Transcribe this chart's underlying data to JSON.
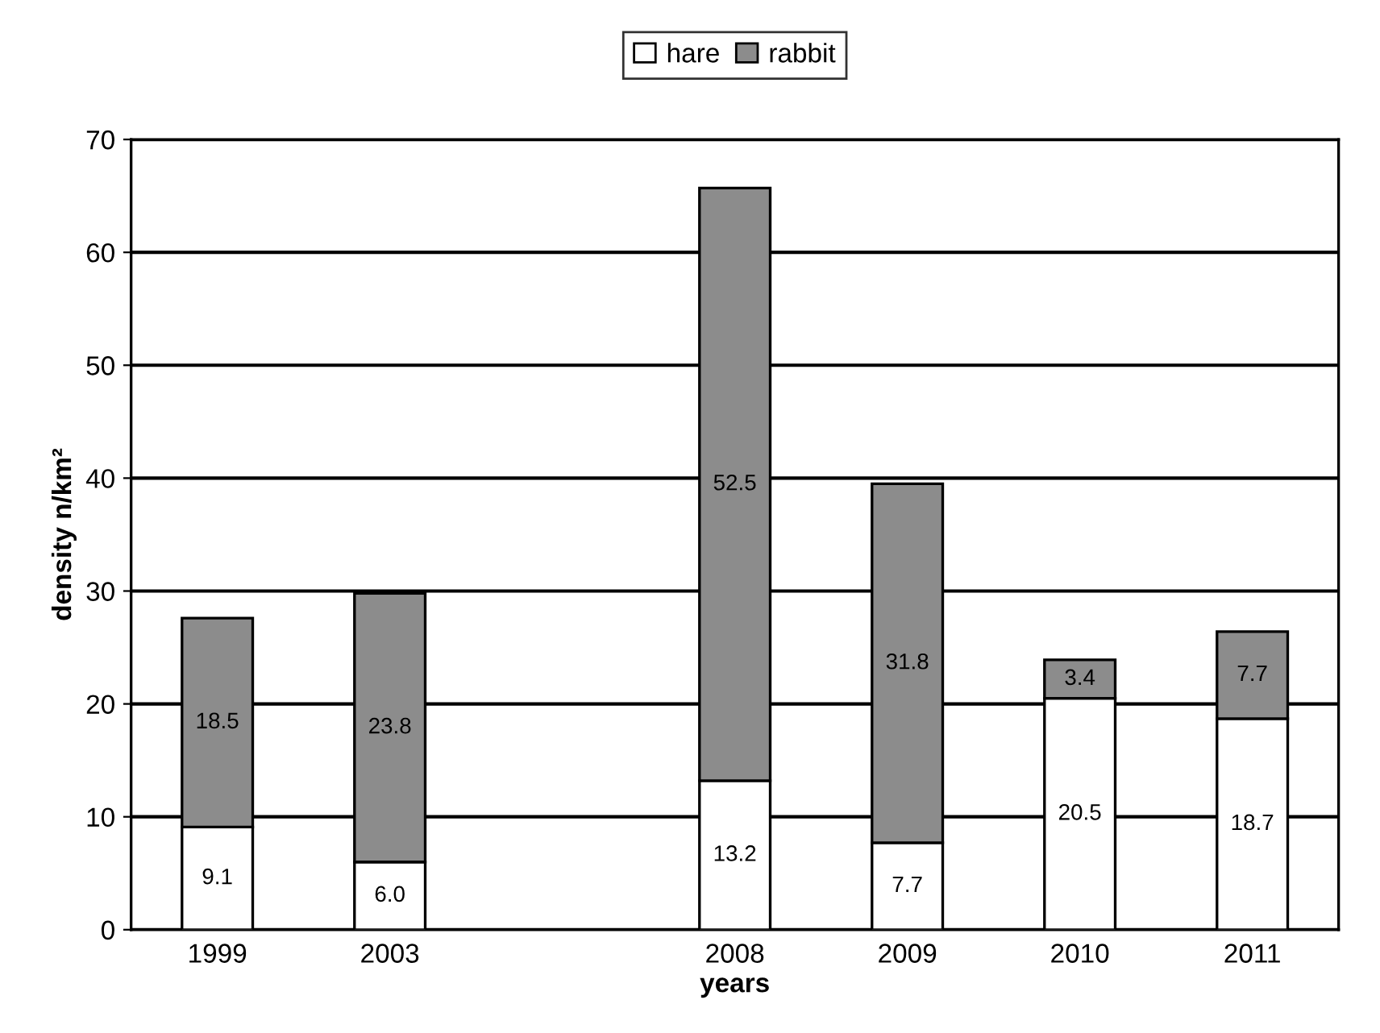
{
  "chart_data": {
    "type": "bar",
    "stacked": true,
    "xlabel": "years",
    "ylabel": "density n/km²",
    "categories": [
      "1999",
      "2003",
      null,
      "2008",
      "2009",
      "2010",
      "2011"
    ],
    "series": [
      {
        "name": "hare",
        "color": "#ffffff",
        "values": [
          9.1,
          6.0,
          null,
          13.2,
          7.7,
          20.5,
          18.7
        ],
        "value_labels": [
          "9.1",
          "6.0",
          null,
          "13.2",
          "7.7",
          "20.5",
          "18.7"
        ]
      },
      {
        "name": "rabbit",
        "color": "#8c8c8c",
        "values": [
          18.5,
          23.8,
          null,
          52.5,
          31.8,
          3.4,
          7.7
        ],
        "value_labels": [
          "18.5",
          "23.8",
          null,
          "52.5",
          "31.8",
          "3.4",
          "7.7"
        ]
      }
    ],
    "ylim": [
      0,
      70
    ],
    "yticks": [
      0,
      10,
      20,
      30,
      40,
      50,
      60,
      70
    ],
    "grid": "y",
    "legend": "top"
  }
}
